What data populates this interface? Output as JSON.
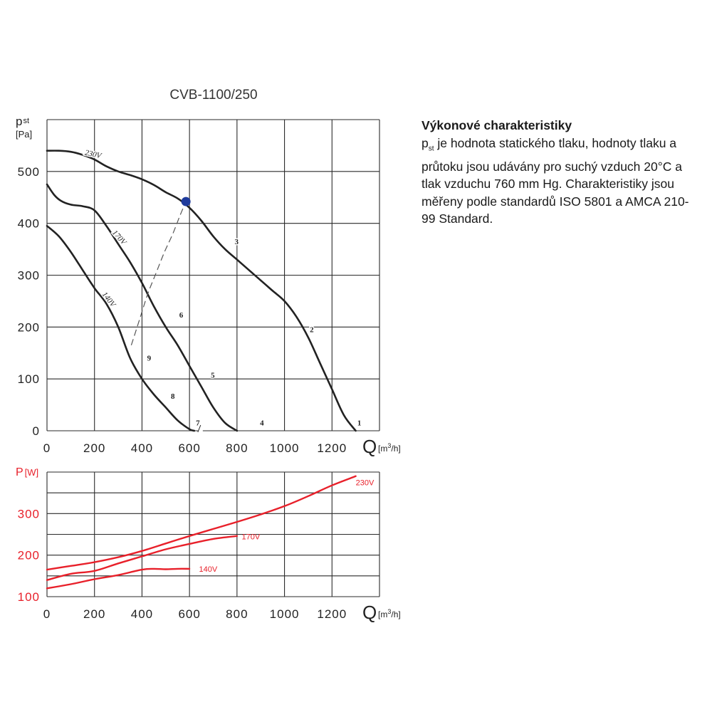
{
  "description": {
    "heading": "Výkonové charakteristiky",
    "symbol_main": "p",
    "symbol_sub": "st",
    "text": " je hodnota statického tlaku, hodnoty tlaku a průtoku jsou udávány pro suchý vzduch 20°C a tlak vzduchu 760 mm Hg. Charakteristiky jsou měřeny podle standardů ISO 5801 a AMCA 210-99 Standard."
  },
  "colors": {
    "pressure": "#222222",
    "power": "#e8202a",
    "grid": "#2a2a2a",
    "operating_point": "#1f3b9c"
  },
  "chart_data": [
    {
      "type": "line",
      "title": "CVB-1100/250",
      "ylabel_main": "p",
      "ylabel_sub": "st",
      "yunit": "[Pa]",
      "xlabel": "Q",
      "xunit_pre": "[m",
      "xunit_sup": "3",
      "xunit_post": "/h]",
      "xlim": [
        0,
        1400
      ],
      "ylim": [
        0,
        600
      ],
      "xticks": [
        0,
        200,
        400,
        600,
        800,
        1000,
        1200
      ],
      "yticks": [
        0,
        100,
        200,
        300,
        400,
        500
      ],
      "grid": true,
      "series": [
        {
          "name": "230V",
          "x": [
            0,
            50,
            100,
            150,
            200,
            250,
            300,
            350,
            400,
            450,
            500,
            550,
            600,
            650,
            700,
            750,
            800,
            850,
            900,
            950,
            1000,
            1050,
            1100,
            1150,
            1200,
            1250,
            1300
          ],
          "y": [
            540,
            540,
            538,
            532,
            523,
            510,
            500,
            493,
            485,
            474,
            460,
            448,
            430,
            405,
            375,
            350,
            330,
            310,
            290,
            270,
            250,
            220,
            180,
            130,
            80,
            30,
            0
          ]
        },
        {
          "name": "170V",
          "x": [
            0,
            30,
            60,
            100,
            150,
            200,
            250,
            300,
            350,
            400,
            450,
            500,
            550,
            600,
            650,
            700,
            750,
            800
          ],
          "y": [
            475,
            455,
            443,
            436,
            433,
            425,
            395,
            360,
            325,
            285,
            240,
            200,
            165,
            125,
            85,
            45,
            15,
            0
          ]
        },
        {
          "name": "140V",
          "x": [
            0,
            50,
            100,
            150,
            200,
            250,
            300,
            350,
            400,
            450,
            500,
            550,
            600,
            620
          ],
          "y": [
            395,
            375,
            345,
            310,
            275,
            245,
            200,
            140,
            100,
            70,
            45,
            20,
            3,
            0
          ]
        }
      ],
      "curve_labels": [
        {
          "text": "230V",
          "series": "230V"
        },
        {
          "text": "170V",
          "series": "170V"
        },
        {
          "text": "140V",
          "series": "140V"
        }
      ],
      "point_labels": [
        {
          "text": "1",
          "x": 1315,
          "y": 10
        },
        {
          "text": "2",
          "x": 1115,
          "y": 190
        },
        {
          "text": "3",
          "x": 798,
          "y": 360
        },
        {
          "text": "4",
          "x": 905,
          "y": 10
        },
        {
          "text": "5",
          "x": 698,
          "y": 102
        },
        {
          "text": "6",
          "x": 565,
          "y": 218
        },
        {
          "text": "7",
          "x": 635,
          "y": 10
        },
        {
          "text": "8",
          "x": 530,
          "y": 62
        },
        {
          "text": "9",
          "x": 430,
          "y": 135
        }
      ],
      "system_curve": {
        "x": [
          355,
          390,
          425,
          460,
          495,
          530,
          560,
          585
        ],
        "y": [
          165,
          215,
          265,
          305,
          345,
          380,
          415,
          442
        ]
      },
      "operating_point": {
        "x": 585,
        "y": 442
      },
      "gap_marks": [
        {
          "x": 650,
          "y": 0
        }
      ]
    },
    {
      "type": "line",
      "ylabel_main": "P",
      "yunit": "[W]",
      "xlabel": "Q",
      "xunit_pre": "[m",
      "xunit_sup": "3",
      "xunit_post": "/h]",
      "xlim": [
        0,
        1400
      ],
      "ylim": [
        100,
        400
      ],
      "xticks": [
        0,
        200,
        400,
        600,
        800,
        1000,
        1200
      ],
      "yticks": [
        100,
        200,
        300
      ],
      "grid": true,
      "series": [
        {
          "name": "230V",
          "x": [
            0,
            100,
            200,
            300,
            400,
            500,
            600,
            700,
            800,
            900,
            1000,
            1100,
            1200,
            1300
          ],
          "y": [
            165,
            174,
            183,
            195,
            210,
            228,
            246,
            263,
            280,
            298,
            318,
            342,
            368,
            390
          ]
        },
        {
          "name": "170V",
          "x": [
            0,
            100,
            200,
            300,
            400,
            500,
            600,
            700,
            800
          ],
          "y": [
            140,
            155,
            162,
            180,
            197,
            214,
            227,
            239,
            246
          ]
        },
        {
          "name": "140V",
          "x": [
            0,
            100,
            200,
            300,
            400,
            450,
            500,
            550,
            600
          ],
          "y": [
            120,
            130,
            142,
            152,
            165,
            167,
            166,
            167,
            167
          ]
        }
      ],
      "series_labels": [
        {
          "text": "230V",
          "x": 1300,
          "y": 375
        },
        {
          "text": "170V",
          "x": 820,
          "y": 245
        },
        {
          "text": "140V",
          "x": 640,
          "y": 167
        }
      ]
    }
  ]
}
